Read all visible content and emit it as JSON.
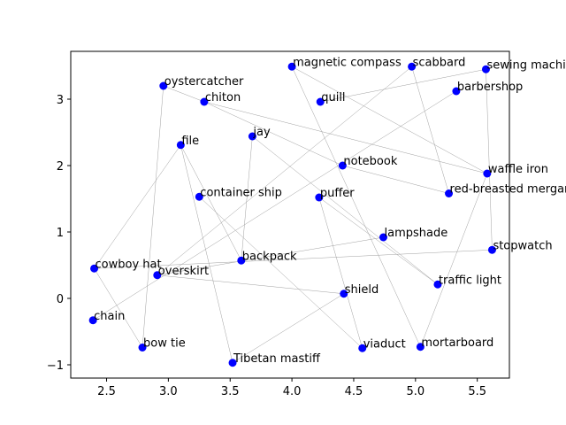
{
  "chart_data": {
    "type": "scatter",
    "title": "",
    "xlabel": "",
    "ylabel": "",
    "xlim": [
      2.21,
      5.76
    ],
    "ylim": [
      -1.2,
      3.72
    ],
    "xticks": [
      2.5,
      3.0,
      3.5,
      4.0,
      4.5,
      5.0,
      5.5
    ],
    "xtick_labels": [
      "2.5",
      "3.0",
      "3.5",
      "4.0",
      "4.5",
      "5.0",
      "5.5"
    ],
    "yticks": [
      -1,
      0,
      1,
      2,
      3
    ],
    "ytick_labels": [
      "−1",
      "0",
      "1",
      "2",
      "3"
    ],
    "grid": false,
    "legend": "none",
    "marker_color": "#0000ff",
    "edge_color": "#a0a0a0",
    "points": [
      {
        "label": "magnetic compass",
        "x": 4.0,
        "y": 3.49
      },
      {
        "label": "scabbard",
        "x": 4.97,
        "y": 3.49
      },
      {
        "label": "sewing machine",
        "x": 5.57,
        "y": 3.45
      },
      {
        "label": "oystercatcher",
        "x": 2.96,
        "y": 3.2
      },
      {
        "label": "barbershop",
        "x": 5.33,
        "y": 3.12
      },
      {
        "label": "chiton",
        "x": 3.29,
        "y": 2.96
      },
      {
        "label": "quill",
        "x": 4.23,
        "y": 2.96
      },
      {
        "label": "jay",
        "x": 3.68,
        "y": 2.44
      },
      {
        "label": "file",
        "x": 3.1,
        "y": 2.31
      },
      {
        "label": "notebook",
        "x": 4.41,
        "y": 2.0
      },
      {
        "label": "waffle iron",
        "x": 5.58,
        "y": 1.88
      },
      {
        "label": "red-breasted merganser",
        "x": 5.27,
        "y": 1.58
      },
      {
        "label": "container ship",
        "x": 3.25,
        "y": 1.53
      },
      {
        "label": "puffer",
        "x": 4.22,
        "y": 1.52
      },
      {
        "label": "lampshade",
        "x": 4.74,
        "y": 0.92
      },
      {
        "label": "stopwatch",
        "x": 5.62,
        "y": 0.73
      },
      {
        "label": "backpack",
        "x": 3.59,
        "y": 0.57
      },
      {
        "label": "cowboy hat",
        "x": 2.4,
        "y": 0.45
      },
      {
        "label": "overskirt",
        "x": 2.91,
        "y": 0.35
      },
      {
        "label": "traffic light",
        "x": 5.18,
        "y": 0.21
      },
      {
        "label": "shield",
        "x": 4.42,
        "y": 0.07
      },
      {
        "label": "chain",
        "x": 2.39,
        "y": -0.33
      },
      {
        "label": "bow tie",
        "x": 2.79,
        "y": -0.74
      },
      {
        "label": "viaduct",
        "x": 4.57,
        "y": -0.75
      },
      {
        "label": "mortarboard",
        "x": 5.04,
        "y": -0.73
      },
      {
        "label": "Tibetan mastiff",
        "x": 3.52,
        "y": -0.97
      }
    ],
    "edges": [
      [
        "magnetic compass",
        "waffle iron"
      ],
      [
        "magnetic compass",
        "mortarboard"
      ],
      [
        "scabbard",
        "red-breasted merganser"
      ],
      [
        "scabbard",
        "overskirt"
      ],
      [
        "sewing machine",
        "quill"
      ],
      [
        "sewing machine",
        "stopwatch"
      ],
      [
        "oystercatcher",
        "chiton"
      ],
      [
        "oystercatcher",
        "bow tie"
      ],
      [
        "barbershop",
        "chain"
      ],
      [
        "chiton",
        "waffle iron"
      ],
      [
        "chiton",
        "notebook"
      ],
      [
        "jay",
        "backpack"
      ],
      [
        "jay",
        "traffic light"
      ],
      [
        "file",
        "cowboy hat"
      ],
      [
        "file",
        "backpack"
      ],
      [
        "file",
        "Tibetan mastiff"
      ],
      [
        "notebook",
        "red-breasted merganser"
      ],
      [
        "waffle iron",
        "mortarboard"
      ],
      [
        "container ship",
        "viaduct"
      ],
      [
        "puffer",
        "traffic light"
      ],
      [
        "puffer",
        "viaduct"
      ],
      [
        "lampshade",
        "overskirt"
      ],
      [
        "stopwatch",
        "cowboy hat"
      ],
      [
        "cowboy hat",
        "bow tie"
      ],
      [
        "overskirt",
        "shield"
      ],
      [
        "shield",
        "Tibetan mastiff"
      ]
    ]
  }
}
